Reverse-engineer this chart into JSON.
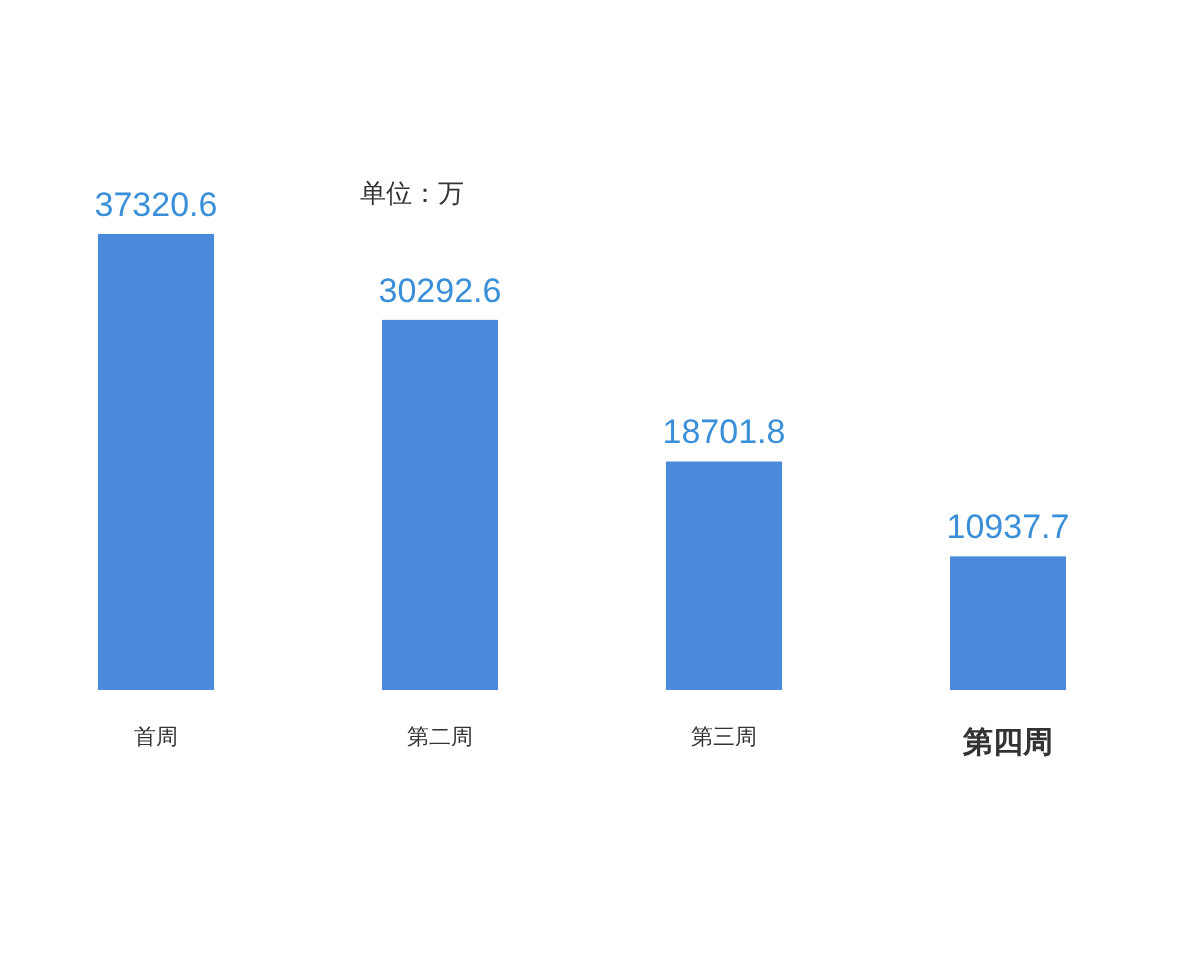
{
  "chart_data": {
    "type": "bar",
    "categories": [
      "首周",
      "第二周",
      "第三周",
      "第四周"
    ],
    "values": [
      37320.6,
      30292.6,
      18701.8,
      10937.7
    ],
    "color": "#4a89dc",
    "data_labels": true,
    "annotations": [
      "单位：万"
    ]
  }
}
